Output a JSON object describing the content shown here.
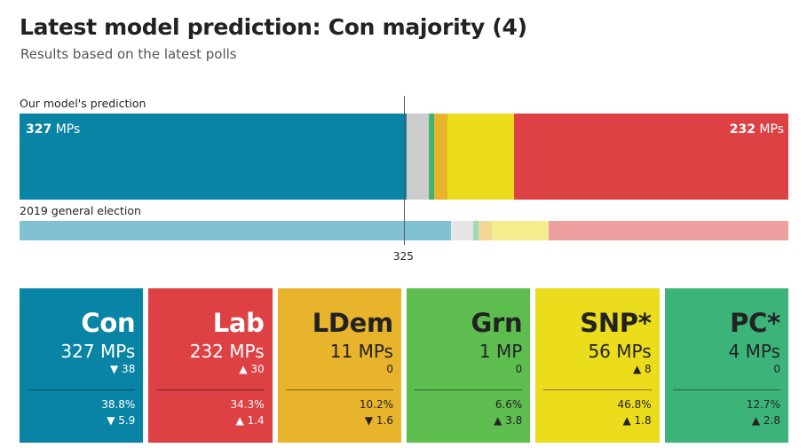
{
  "title": "Latest model prediction: Con majority (4)",
  "subtitle": "Results based on the latest polls",
  "chart_data": {
    "type": "bar",
    "orientation": "horizontal-stacked",
    "total_seats": 650,
    "majority_line": 325,
    "majority_label": "325",
    "rows": [
      {
        "label": "Our model's prediction",
        "left_label_value": "327",
        "left_label_unit": "MPs",
        "right_label_value": "232",
        "right_label_unit": "MPs",
        "segments": [
          {
            "party": "Con",
            "seats": 327,
            "color": "#0a84a4"
          },
          {
            "party": "Other",
            "seats": 19,
            "color": "#cccccc"
          },
          {
            "party": "Grn",
            "seats": 1,
            "color": "#55b85a"
          },
          {
            "party": "PC",
            "seats": 4,
            "color": "#3cb479"
          },
          {
            "party": "LDem",
            "seats": 11,
            "color": "#e8b42c"
          },
          {
            "party": "SNP",
            "seats": 56,
            "color": "#ebdc1c"
          },
          {
            "party": "Lab",
            "seats": 232,
            "color": "#dd4144"
          }
        ]
      },
      {
        "label": "2019 general election",
        "segments": [
          {
            "party": "Con",
            "seats": 365,
            "color": "#80c1d3"
          },
          {
            "party": "Other",
            "seats": 19,
            "color": "#e6e6e6"
          },
          {
            "party": "Grn",
            "seats": 1,
            "color": "#aad9ac"
          },
          {
            "party": "PC",
            "seats": 4,
            "color": "#9ed9bc"
          },
          {
            "party": "LDem",
            "seats": 11,
            "color": "#f3d895"
          },
          {
            "party": "SNP",
            "seats": 48,
            "color": "#f4ed8d"
          },
          {
            "party": "Lab",
            "seats": 202,
            "color": "#eea0a1"
          }
        ]
      }
    ]
  },
  "cards": [
    {
      "party": "Con",
      "mps": "327 MPs",
      "seat_change": "▼ 38",
      "vote_share": "38.8%",
      "vote_change": "▼ 5.9",
      "color": "#0a84a4",
      "text": "light"
    },
    {
      "party": "Lab",
      "mps": "232 MPs",
      "seat_change": "▲ 30",
      "vote_share": "34.3%",
      "vote_change": "▲ 1.4",
      "color": "#dd4144",
      "text": "light"
    },
    {
      "party": "LDem",
      "mps": "11 MPs",
      "seat_change": "0",
      "vote_share": "10.2%",
      "vote_change": "▼ 1.6",
      "color": "#e8b42c",
      "text": "dark"
    },
    {
      "party": "Grn",
      "mps": "1 MP",
      "seat_change": "0",
      "vote_share": "6.6%",
      "vote_change": "▲ 3.8",
      "color": "#5dbe4f",
      "text": "dark"
    },
    {
      "party": "SNP*",
      "mps": "56 MPs",
      "seat_change": "▲ 8",
      "vote_share": "46.8%",
      "vote_change": "▲ 1.8",
      "color": "#ebdc1c",
      "text": "dark"
    },
    {
      "party": "PC*",
      "mps": "4 MPs",
      "seat_change": "0",
      "vote_share": "12.7%",
      "vote_change": "▲ 2.8",
      "color": "#3cb479",
      "text": "dark"
    }
  ]
}
